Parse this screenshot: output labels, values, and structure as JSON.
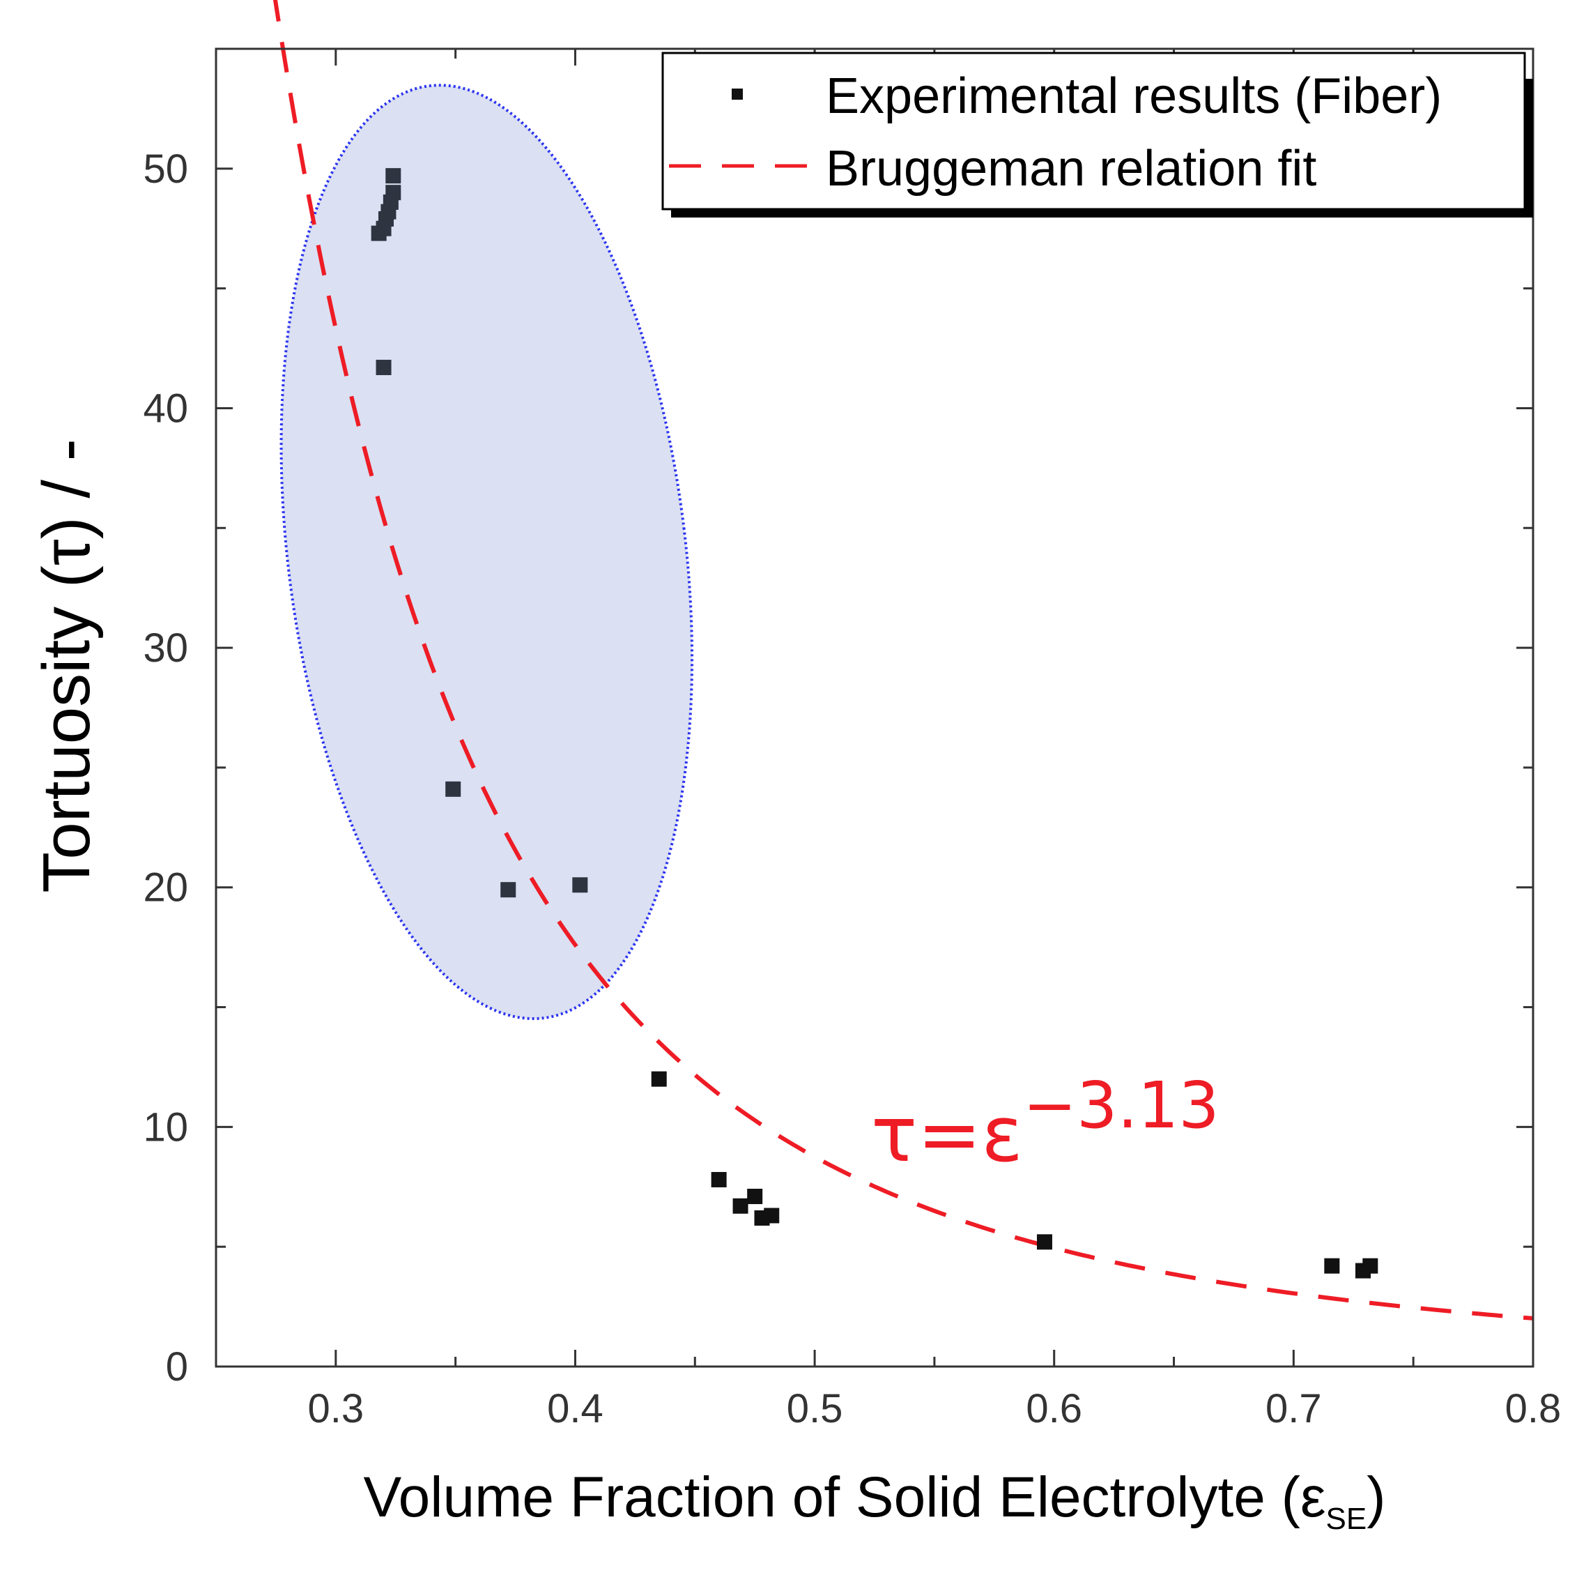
{
  "chart_data": {
    "type": "scatter",
    "title": "",
    "xlabel": "Volume Fraction of Solid Electrolyte (ε",
    "xlabel_subscript": "SE",
    "xlabel_close": ")",
    "ylabel": "Tortuosity (τ) / -",
    "xlim": [
      0.25,
      0.8
    ],
    "ylim": [
      0,
      55
    ],
    "x_ticks": [
      0.3,
      0.4,
      0.5,
      0.6,
      0.7,
      0.8
    ],
    "x_tick_labels": [
      "0.3",
      "0.4",
      "0.5",
      "0.6",
      "0.7",
      "0.8"
    ],
    "y_ticks": [
      0,
      10,
      20,
      30,
      40,
      50
    ],
    "y_tick_labels": [
      "0",
      "10",
      "20",
      "30",
      "40",
      "50"
    ],
    "grid": false,
    "legend": {
      "position": "top-right",
      "entries": [
        "Experimental results (Fiber)",
        "Bruggeman relation fit"
      ]
    },
    "series": [
      {
        "name": "Experimental results (Fiber)",
        "kind": "scatter",
        "color": "#111111",
        "x": [
          0.318,
          0.32,
          0.321,
          0.322,
          0.323,
          0.324,
          0.324,
          0.32,
          0.349,
          0.372,
          0.402,
          0.435,
          0.46,
          0.469,
          0.475,
          0.478,
          0.482,
          0.596,
          0.716,
          0.729,
          0.732
        ],
        "y": [
          47.3,
          47.5,
          47.9,
          48.2,
          48.6,
          49.0,
          49.7,
          41.7,
          24.1,
          19.9,
          20.1,
          12.0,
          7.8,
          6.7,
          7.1,
          6.2,
          6.3,
          5.2,
          4.2,
          4.0,
          4.2
        ]
      },
      {
        "name": "Bruggeman relation fit",
        "kind": "line",
        "style": "dashed",
        "color": "#ee1c25",
        "equation": "τ = ε^-3.13",
        "exponent": -3.13,
        "x_range": [
          0.25,
          0.8
        ]
      }
    ],
    "annotations": [
      {
        "text_base": "τ=ε",
        "text_superscript": "−3.13",
        "color": "#ee1c25",
        "anchor_data": [
          0.52,
          9.0
        ]
      },
      {
        "kind": "highlight-ellipse",
        "color_fill": "#dbe0f2",
        "color_stroke": "#2b34f0",
        "center_data": [
          0.363,
          34.0
        ],
        "semi_axes_data": [
          0.083,
          19.6
        ],
        "rotation_deg": -7
      }
    ]
  }
}
